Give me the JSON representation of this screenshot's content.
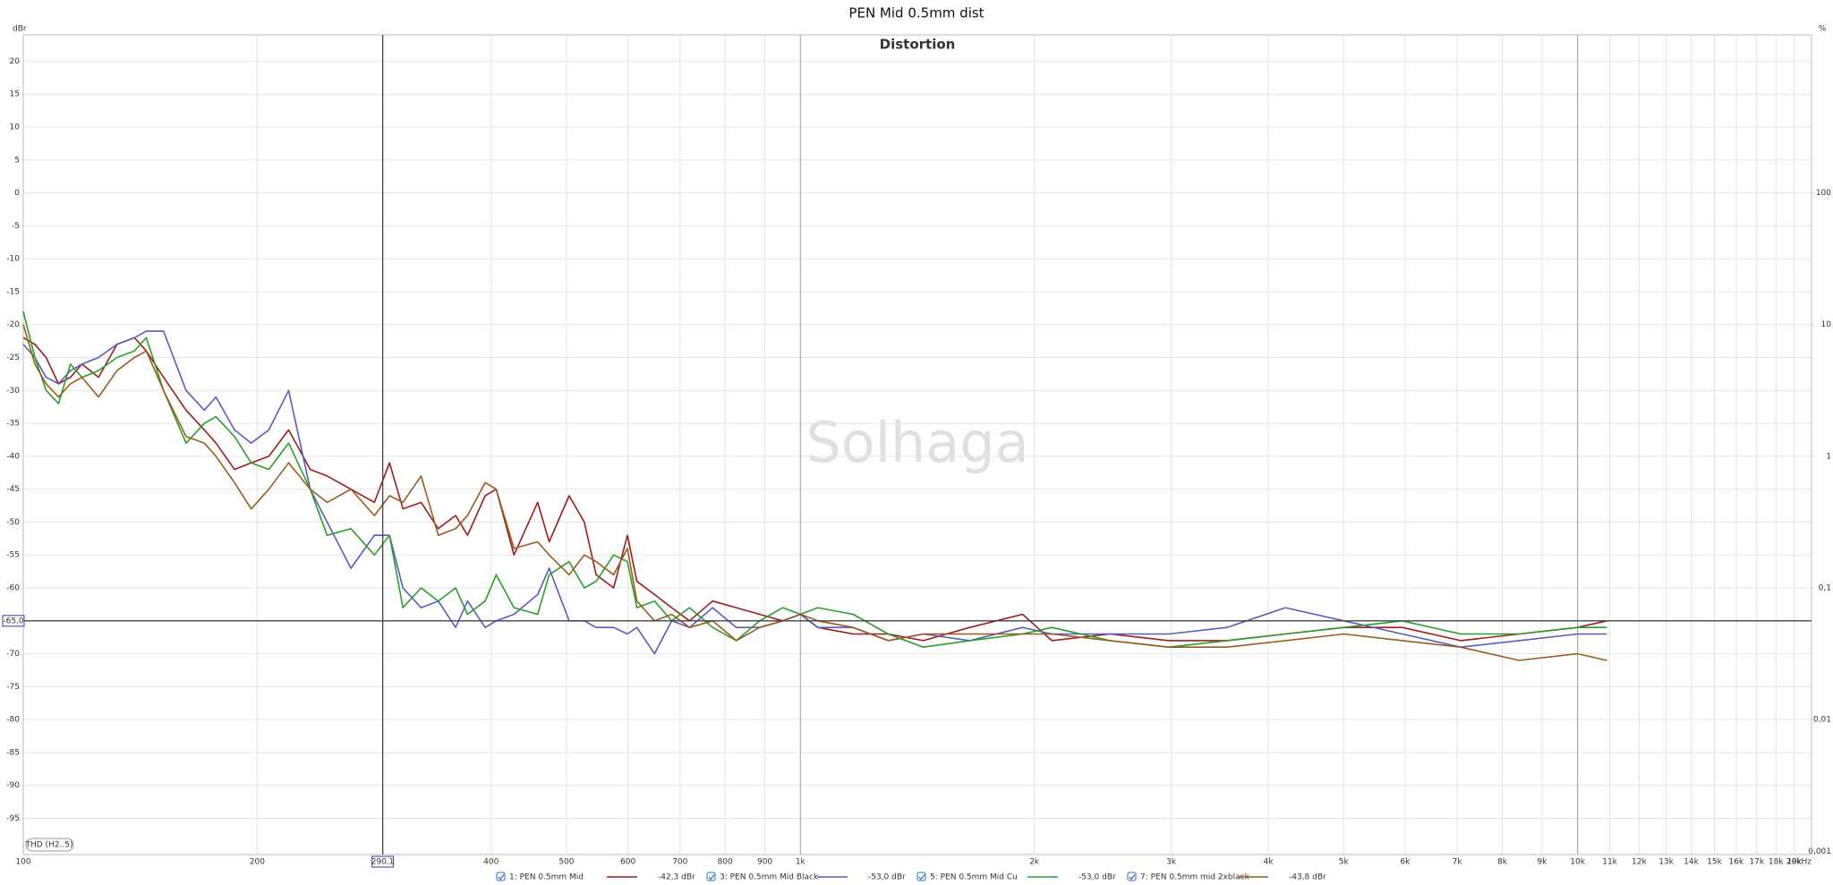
{
  "chart_data": {
    "type": "line",
    "title": "PEN Mid 0.5mm dist",
    "subtitle": "Distortion",
    "watermark": "Solhaga",
    "y_label": "dBr",
    "y2_label": "%",
    "measure_label": "THD (H2..5)",
    "x_scale": "log",
    "y2_scale": "log",
    "grid": true,
    "xlim": [
      100,
      20000
    ],
    "ylim": [
      -100.5,
      24
    ],
    "y2lim": [
      0.000944,
      1585
    ],
    "xticks": [
      100,
      200,
      400,
      500,
      600,
      700,
      800,
      900,
      {
        "value": 1000,
        "label": "1k"
      },
      {
        "value": 2000,
        "label": "2k"
      },
      {
        "value": 3000,
        "label": "3k"
      },
      {
        "value": 4000,
        "label": "4k"
      },
      {
        "value": 5000,
        "label": "5k"
      },
      {
        "value": 6000,
        "label": "6k"
      },
      {
        "value": 7000,
        "label": "7k"
      },
      {
        "value": 8000,
        "label": "8k"
      },
      {
        "value": 9000,
        "label": "9k"
      },
      {
        "value": 10000,
        "label": "10k"
      },
      {
        "value": 11000,
        "label": "11k"
      },
      {
        "value": 12000,
        "label": "12k"
      },
      {
        "value": 13000,
        "label": "13k"
      },
      {
        "value": 14000,
        "label": "14k"
      },
      {
        "value": 15000,
        "label": "15k"
      },
      {
        "value": 16000,
        "label": "16k"
      },
      {
        "value": 17000,
        "label": "17k"
      },
      {
        "value": 18000,
        "label": "18k"
      },
      {
        "value": 19000,
        "label": "19k"
      },
      {
        "value": 20000,
        "label": "20kHz"
      }
    ],
    "yticks": [
      -95,
      -90,
      -85,
      -80,
      -75,
      -70,
      -65,
      -60,
      -55,
      -50,
      -45,
      -40,
      -35,
      -30,
      -25,
      -20,
      -15,
      -10,
      -5,
      0,
      5,
      10,
      15,
      20
    ],
    "y2ticks": [
      {
        "value": 0.001,
        "label": "0,001"
      },
      {
        "value": 0.01,
        "label": "0,01"
      },
      {
        "value": 0.1,
        "label": "0,1"
      },
      1,
      10,
      100
    ],
    "cursor_x": {
      "value": 290.1,
      "label": "290,1"
    },
    "cursor_y": {
      "value": -65,
      "label": "-65,0"
    },
    "x": [
      100,
      103.5,
      107,
      111,
      115,
      119,
      125,
      132,
      139,
      144,
      151.5,
      162,
      171,
      177,
      187,
      196.5,
      207,
      219.5,
      234,
      246,
      264,
      283,
      296,
      308,
      325,
      342,
      360,
      373,
      393,
      406,
      428,
      459,
      475,
      504,
      527,
      546,
      575,
      599,
      616,
      649,
      683,
      720,
      771,
      827,
      886,
      949,
      1000,
      1053,
      1169,
      1297,
      1439,
      1652,
      1931,
      2106,
      2503,
      2977,
      3539,
      4208,
      5003,
      5949,
      7073,
      8410,
      10000,
      10905
    ],
    "series": [
      {
        "name": "1: PEN 0.5mm Mid",
        "level_label": "-42,3 dBr",
        "color": "#a31a1a",
        "values": [
          -22,
          -23,
          -25,
          -29,
          -28,
          -26,
          -28,
          -23,
          -22,
          -24,
          -28,
          -33,
          -36,
          -38,
          -42,
          -41,
          -40,
          -36,
          -42,
          -43,
          -45,
          -47,
          -41,
          -48,
          -47,
          -51,
          -49,
          -52,
          -46,
          -45,
          -55,
          -47,
          -53,
          -46,
          -50,
          -58,
          -60,
          -52,
          -59,
          -61,
          -63,
          -65,
          -62,
          -63,
          -64,
          -65,
          -64,
          -66,
          -67,
          -67,
          -68,
          -66,
          -64,
          -68,
          -67,
          -68,
          -68,
          -67,
          -66,
          -66,
          -68,
          -67,
          -66,
          -65
        ]
      },
      {
        "name": "3: PEN 0.5mm Mid Black",
        "level_label": "-53,0 dBr",
        "color": "#5a5ac4",
        "values": [
          -23,
          -25,
          -28,
          -29,
          -27,
          -26,
          -25,
          -23,
          -22,
          -21,
          -21,
          -30,
          -33,
          -31,
          -36,
          -38,
          -36,
          -30,
          -45,
          -50,
          -57,
          -52,
          -52,
          -60,
          -63,
          -62,
          -66,
          -62,
          -66,
          -65,
          -64,
          -61,
          -57,
          -65,
          -65,
          -66,
          -66,
          -67,
          -66,
          -70,
          -65,
          -66,
          -63,
          -66,
          -66,
          -65,
          -64,
          -66,
          -66,
          -68,
          -67,
          -68,
          -66,
          -67,
          -67,
          -67,
          -66,
          -63,
          -65,
          -67,
          -69,
          -68,
          -67,
          -67
        ]
      },
      {
        "name": "5: PEN 0.5mm Mid Cu",
        "level_label": "-53,0 dBr",
        "color": "#26a126",
        "values": [
          -18,
          -25,
          -30,
          -32,
          -26,
          -28,
          -27,
          -25,
          -24,
          -22,
          -30,
          -38,
          -35,
          -34,
          -37,
          -41,
          -42,
          -38,
          -45,
          -52,
          -51,
          -55,
          -52,
          -63,
          -60,
          -62,
          -60,
          -64,
          -62,
          -58,
          -63,
          -64,
          -58,
          -56,
          -60,
          -59,
          -55,
          -56,
          -63,
          -62,
          -65,
          -63,
          -66,
          -68,
          -65,
          -63,
          -64,
          -63,
          -64,
          -67,
          -69,
          -68,
          -67,
          -66,
          -68,
          -69,
          -68,
          -67,
          -66,
          -65,
          -67,
          -67,
          -66,
          -66
        ]
      },
      {
        "name": "7: PEN 0.5mm mid 2xblack",
        "level_label": "-43,8 dBr",
        "color": "#9a5c1c",
        "values": [
          -20,
          -26,
          -29,
          -31,
          -29,
          -28,
          -31,
          -27,
          -25,
          -24,
          -30,
          -37,
          -38,
          -40,
          -44,
          -48,
          -45,
          -41,
          -45,
          -47,
          -45,
          -49,
          -46,
          -47,
          -43,
          -52,
          -51,
          -49,
          -44,
          -45,
          -54,
          -53,
          -55,
          -58,
          -55,
          -56,
          -58,
          -54,
          -62,
          -65,
          -64,
          -66,
          -65,
          -68,
          -66,
          -65,
          -64,
          -65,
          -66,
          -68,
          -67,
          -67,
          -67,
          -67,
          -68,
          -69,
          -69,
          -68,
          -67,
          -68,
          -69,
          -71,
          -70,
          -71
        ]
      }
    ]
  }
}
